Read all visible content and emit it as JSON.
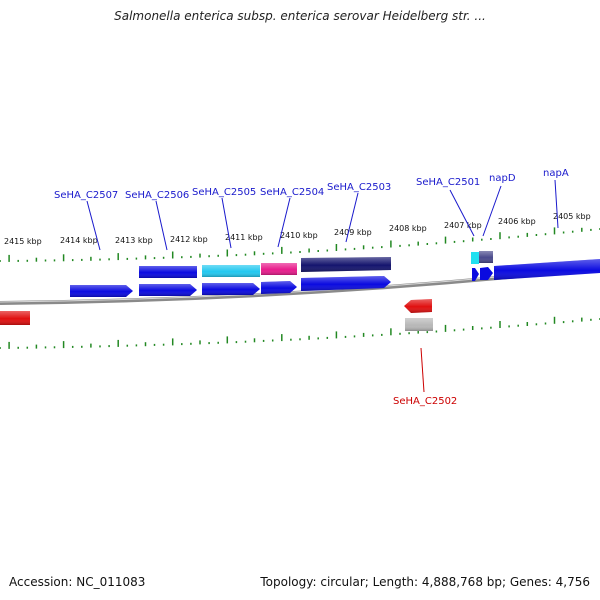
{
  "title": "Salmonella enterica subsp. enterica serovar Heidelberg str. ...",
  "footer": {
    "accession": "Accession: NC_011083",
    "summary": "Topology: circular; Length: 4,888,768 bp; Genes: 4,756"
  },
  "colors": {
    "background": "#ffffff",
    "backbone": "#8a8a8a",
    "tick": "#228822",
    "label_forward": "#1a1acc",
    "label_reverse": "#cc0000",
    "gene_blue": "#0a0ae0",
    "gene_cyan": "#22c8f0",
    "gene_magenta": "#e81c8c",
    "gene_navy": "#14146e",
    "gene_red": "#e01010",
    "gene_gray": "#b8b8b8",
    "gene_slate": "#4a4a8c"
  },
  "scale": {
    "kbp_labels": [
      "2415 kbp",
      "2414 kbp",
      "2413 kbp",
      "2412 kbp",
      "2411 kbp",
      "2410 kbp",
      "2409 kbp",
      "2408 kbp",
      "2407 kbp",
      "2406 kbp",
      "2405 kbp"
    ]
  },
  "genes": [
    {
      "id": "rev-arrow-left",
      "strand": "reverse",
      "color": "gene_red",
      "label": ""
    },
    {
      "id": "SeHA_C2507",
      "strand": "forward",
      "color": "gene_blue",
      "label": "SeHA_C2507"
    },
    {
      "id": "SeHA_C2506",
      "strand": "forward",
      "color": "gene_blue",
      "label": "SeHA_C2506"
    },
    {
      "id": "SeHA_C2505",
      "strand": "forward",
      "color": "gene_blue",
      "label": "SeHA_C2505"
    },
    {
      "id": "SeHA_C2504",
      "strand": "forward",
      "color": "gene_blue",
      "label": "SeHA_C2504"
    },
    {
      "id": "SeHA_C2503",
      "strand": "forward",
      "color": "gene_blue",
      "label": "SeHA_C2503"
    },
    {
      "id": "SeHA_C2502",
      "strand": "reverse",
      "color": "gene_red",
      "label": "SeHA_C2502"
    },
    {
      "id": "SeHA_C2501",
      "strand": "forward",
      "color": "gene_blue",
      "label": "SeHA_C2501"
    },
    {
      "id": "napD",
      "strand": "forward",
      "color": "gene_blue",
      "label": "napD"
    },
    {
      "id": "napA",
      "strand": "forward",
      "color": "gene_blue",
      "label": "napA"
    }
  ]
}
